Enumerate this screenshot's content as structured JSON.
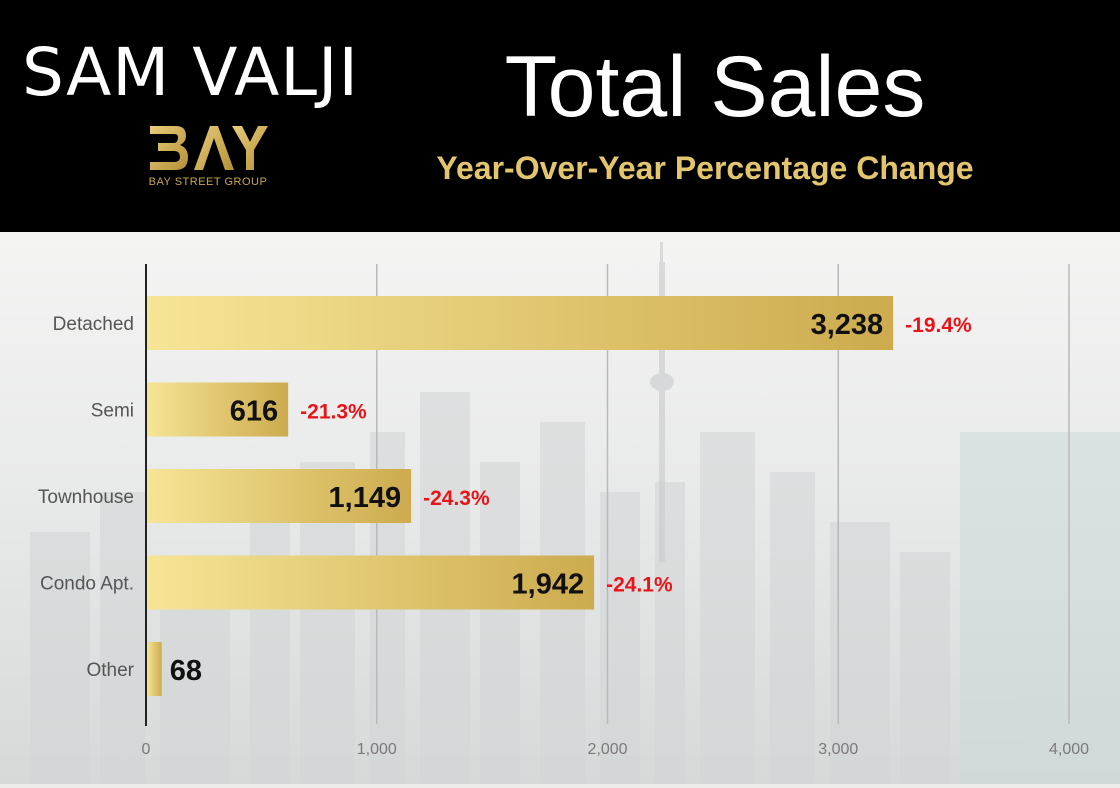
{
  "header": {
    "brand_name": "SAM VALJI",
    "logo_text": "BAY",
    "logo_subtext": "BAY STREET GROUP",
    "title": "Total Sales",
    "subtitle": "Year-Over-Year Percentage Change"
  },
  "colors": {
    "header_bg": "#000000",
    "bar_light": "#f5e391",
    "bar_dark": "#cfae50",
    "pct_negative": "#e8141a",
    "gold_text": "#e3c56e"
  },
  "chart_data": {
    "type": "bar",
    "orientation": "horizontal",
    "title": "Total Sales",
    "subtitle": "Year-Over-Year Percentage Change",
    "categories": [
      "Detached",
      "Semi",
      "Townhouse",
      "Condo Apt.",
      "Other"
    ],
    "values": [
      3238,
      616,
      1149,
      1942,
      68
    ],
    "value_labels": [
      "3,238",
      "616",
      "1,149",
      "1,942",
      "68"
    ],
    "annotations": [
      "-19.4%",
      "-21.3%",
      "-24.3%",
      "-24.1%",
      ""
    ],
    "xlim": [
      0,
      4000
    ],
    "xticks": [
      0,
      1000,
      2000,
      3000,
      4000
    ],
    "xtick_labels": [
      "0",
      "1,000",
      "2,000",
      "3,000",
      "4,000"
    ],
    "grid": "vertical",
    "legend": "none"
  }
}
